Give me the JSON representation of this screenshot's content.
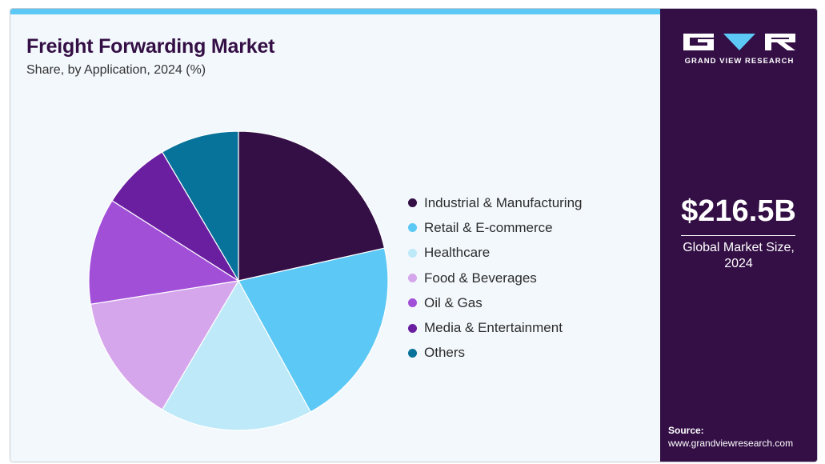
{
  "header": {
    "title": "Freight Forwarding Market",
    "subtitle": "Share, by Application, 2024 (%)"
  },
  "sidebar": {
    "brand": "GRAND VIEW RESEARCH",
    "value": "$216.5B",
    "caption_line1": "Global Market Size,",
    "caption_line2": "2024",
    "source_label": "Source:",
    "source_url": "www.grandviewresearch.com"
  },
  "colors": {
    "accent": "#5cc8f5",
    "sidebar_bg": "#330f45",
    "panel_bg": "#f3f8fc"
  },
  "chart_data": {
    "type": "pie",
    "title": "",
    "legend_position": "right",
    "slices": [
      {
        "label": "Industrial & Manufacturing",
        "value": 21.5,
        "color": "#330f45"
      },
      {
        "label": "Retail & E-commerce",
        "value": 20.5,
        "color": "#5cc8f5"
      },
      {
        "label": "Healthcare",
        "value": 16.5,
        "color": "#bde9f9"
      },
      {
        "label": "Food & Beverages",
        "value": 14.0,
        "color": "#d5a6ec"
      },
      {
        "label": "Oil & Gas",
        "value": 11.5,
        "color": "#a24fd8"
      },
      {
        "label": "Media & Entertainment",
        "value": 7.5,
        "color": "#6a1fa0"
      },
      {
        "label": "Others",
        "value": 8.5,
        "color": "#08739a"
      }
    ]
  }
}
